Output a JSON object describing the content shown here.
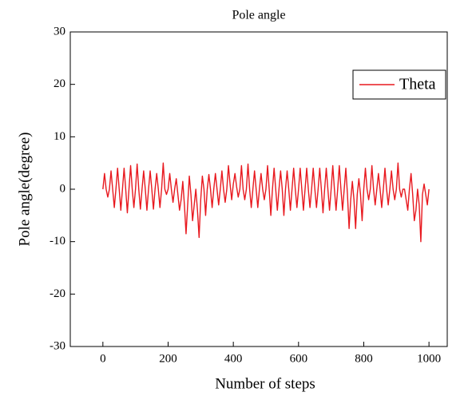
{
  "chart_data": {
    "type": "line",
    "title": "Pole angle",
    "x_label": "Number of steps",
    "y_label": "Pole angle(degree)",
    "x": [
      0,
      5,
      10,
      15,
      20,
      25,
      30,
      35,
      40,
      45,
      50,
      55,
      60,
      65,
      70,
      75,
      80,
      85,
      90,
      95,
      100,
      105,
      110,
      115,
      120,
      125,
      130,
      135,
      140,
      145,
      150,
      155,
      160,
      165,
      170,
      175,
      180,
      185,
      190,
      195,
      200,
      205,
      210,
      215,
      220,
      225,
      230,
      235,
      240,
      245,
      250,
      255,
      260,
      265,
      270,
      275,
      280,
      285,
      290,
      295,
      300,
      305,
      310,
      315,
      320,
      325,
      330,
      335,
      340,
      345,
      350,
      355,
      360,
      365,
      370,
      375,
      380,
      385,
      390,
      395,
      400,
      405,
      410,
      415,
      420,
      425,
      430,
      435,
      440,
      445,
      450,
      455,
      460,
      465,
      470,
      475,
      480,
      485,
      490,
      495,
      500,
      505,
      510,
      515,
      520,
      525,
      530,
      535,
      540,
      545,
      550,
      555,
      560,
      565,
      570,
      575,
      580,
      585,
      590,
      595,
      600,
      605,
      610,
      615,
      620,
      625,
      630,
      635,
      640,
      645,
      650,
      655,
      660,
      665,
      670,
      675,
      680,
      685,
      690,
      695,
      700,
      705,
      710,
      715,
      720,
      725,
      730,
      735,
      740,
      745,
      750,
      755,
      760,
      765,
      770,
      775,
      780,
      785,
      790,
      795,
      800,
      805,
      810,
      815,
      820,
      825,
      830,
      835,
      840,
      845,
      850,
      855,
      860,
      865,
      870,
      875,
      880,
      885,
      890,
      895,
      900,
      905,
      910,
      915,
      920,
      925,
      930,
      935,
      940,
      945,
      950,
      955,
      960,
      965,
      970,
      975,
      980,
      985,
      990,
      995,
      1000
    ],
    "series": [
      {
        "name": "Theta",
        "color": "#e8191f",
        "values": [
          0,
          3,
          0,
          -1.5,
          0,
          3.5,
          0,
          -3.5,
          0,
          4,
          0,
          -4,
          0,
          4,
          0,
          -4.5,
          0,
          4.5,
          0,
          -3.5,
          0,
          4.8,
          0,
          -3.8,
          0,
          3.5,
          0,
          -4,
          0,
          3.5,
          0,
          -3.8,
          0,
          3,
          0,
          -3.5,
          0,
          5,
          0,
          -1,
          0,
          3,
          0,
          -2.5,
          0,
          2,
          -1,
          -4,
          -2,
          1.5,
          -3,
          -8.5,
          -3,
          2.5,
          -1,
          -6,
          -3,
          0,
          -4,
          -9.2,
          -2,
          2.5,
          0,
          -5,
          0,
          2.8,
          0,
          -3.5,
          0,
          3,
          0,
          -3,
          0,
          3.5,
          0,
          -2.5,
          0,
          4.5,
          1,
          -2,
          1,
          3,
          0.5,
          -1.5,
          0,
          4.5,
          0,
          -2,
          0,
          4.8,
          0,
          -3.5,
          0,
          3.5,
          0,
          -3.5,
          0,
          3,
          0,
          -2,
          0,
          4.5,
          0,
          -5,
          0,
          4,
          0,
          -4,
          0,
          3.5,
          0,
          -5,
          0,
          3.5,
          0,
          -4,
          0,
          4,
          0,
          -3.5,
          0,
          4,
          0,
          -4,
          0,
          4,
          0,
          -3.5,
          0,
          4,
          0,
          -3.5,
          0,
          4,
          0,
          -4.5,
          0,
          4,
          0,
          -4,
          0,
          4.5,
          0,
          -4,
          0,
          4.5,
          0,
          -4,
          0,
          4,
          -1,
          -7.5,
          -2,
          1.5,
          -2,
          -7.5,
          -1,
          2,
          -1,
          -6,
          0,
          4,
          0,
          -2,
          0,
          4.5,
          0,
          -3,
          0,
          3,
          0,
          -3.5,
          0,
          4,
          0,
          -3,
          0,
          3.5,
          0,
          -2,
          0,
          5,
          0,
          -1.5,
          0,
          0,
          -2,
          -4,
          0,
          3,
          -1,
          -6,
          -4,
          0,
          -3,
          -10,
          -1,
          1,
          -1,
          -3,
          0
        ]
      }
    ],
    "xlim": [
      -100,
      1056
    ],
    "ylim": [
      -30,
      30
    ],
    "xticks": [
      0,
      200,
      400,
      600,
      800,
      1000
    ],
    "yticks": [
      -30,
      -20,
      -10,
      0,
      10,
      20,
      30
    ],
    "legend": "upper right"
  }
}
